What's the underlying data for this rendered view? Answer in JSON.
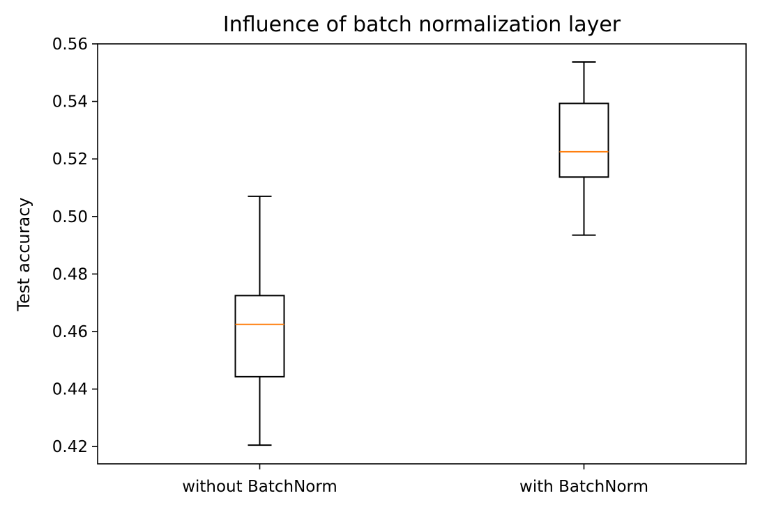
{
  "chart_data": {
    "type": "box",
    "title": "Influence of batch normalization layer",
    "xlabel": "",
    "ylabel": "Test accuracy",
    "ylim": [
      0.414,
      0.56
    ],
    "yticks": [
      0.42,
      0.44,
      0.46,
      0.48,
      0.5,
      0.52,
      0.54,
      0.56
    ],
    "ytick_labels": [
      "0.42",
      "0.44",
      "0.46",
      "0.48",
      "0.50",
      "0.52",
      "0.54",
      "0.56"
    ],
    "categories": [
      "without BatchNorm",
      "with BatchNorm"
    ],
    "boxes": [
      {
        "category": "without BatchNorm",
        "whisker_low": 0.4205,
        "q1": 0.4443,
        "median": 0.4625,
        "q3": 0.4725,
        "whisker_high": 0.507
      },
      {
        "category": "with BatchNorm",
        "whisker_low": 0.4935,
        "q1": 0.5137,
        "median": 0.5225,
        "q3": 0.5393,
        "whisker_high": 0.5537
      }
    ],
    "grid": false,
    "colors": {
      "box": "#000000",
      "median": "#ff7f0e",
      "background": "#ffffff"
    }
  }
}
